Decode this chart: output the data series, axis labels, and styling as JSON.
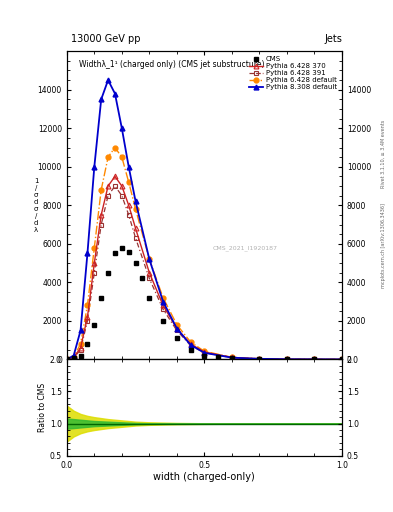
{
  "title_top": "13000 GeV pp",
  "title_right": "Jets",
  "main_title": "Widthλ_1¹ (charged only) (CMS jet substructure)",
  "xlabel": "width (charged-only)",
  "watermark": "CMS_2021_I1920187",
  "rivet_text": "Rivet 3.1.10, ≥ 3.4M events",
  "mcplots_text": "mcplots.cern.ch [arXiv:1306.3436]",
  "x_vals": [
    0.0,
    0.025,
    0.05,
    0.075,
    0.1,
    0.125,
    0.15,
    0.175,
    0.2,
    0.225,
    0.25,
    0.275,
    0.3,
    0.35,
    0.4,
    0.45,
    0.5,
    0.55,
    0.6,
    0.7,
    0.8,
    0.9,
    1.0
  ],
  "cms_y": [
    0,
    50,
    200,
    800,
    1800,
    3200,
    4500,
    5500,
    5800,
    5600,
    5000,
    4200,
    3200,
    2000,
    1100,
    500,
    200,
    100,
    50,
    20,
    8,
    3,
    0
  ],
  "p6_370_x": [
    0.0,
    0.025,
    0.05,
    0.075,
    0.1,
    0.125,
    0.15,
    0.175,
    0.2,
    0.225,
    0.25,
    0.3,
    0.35,
    0.4,
    0.45,
    0.5,
    0.6,
    0.7,
    0.8,
    0.9,
    1.0
  ],
  "p6_370_y": [
    0,
    100,
    600,
    2200,
    5000,
    7500,
    9000,
    9500,
    9000,
    8000,
    6800,
    4500,
    2800,
    1600,
    800,
    380,
    100,
    30,
    10,
    3,
    0
  ],
  "p6_391_x": [
    0.0,
    0.025,
    0.05,
    0.075,
    0.1,
    0.125,
    0.15,
    0.175,
    0.2,
    0.225,
    0.25,
    0.3,
    0.35,
    0.4,
    0.45,
    0.5,
    0.6,
    0.7,
    0.8,
    0.9,
    1.0
  ],
  "p6_391_y": [
    0,
    80,
    500,
    2000,
    4500,
    7000,
    8500,
    9000,
    8500,
    7500,
    6300,
    4200,
    2600,
    1500,
    720,
    350,
    90,
    28,
    8,
    2,
    0
  ],
  "p6_def_x": [
    0.0,
    0.025,
    0.05,
    0.075,
    0.1,
    0.125,
    0.15,
    0.175,
    0.2,
    0.225,
    0.25,
    0.3,
    0.35,
    0.4,
    0.45,
    0.5,
    0.6,
    0.7,
    0.8,
    0.9,
    1.0
  ],
  "p6_def_y": [
    0,
    130,
    800,
    2800,
    5800,
    8800,
    10500,
    11000,
    10500,
    9200,
    7800,
    5200,
    3200,
    1800,
    900,
    420,
    110,
    35,
    11,
    3,
    0
  ],
  "p8_def_x": [
    0.0,
    0.025,
    0.05,
    0.075,
    0.1,
    0.125,
    0.15,
    0.175,
    0.2,
    0.225,
    0.25,
    0.3,
    0.35,
    0.4,
    0.45,
    0.5,
    0.6,
    0.7,
    0.8,
    0.9,
    1.0
  ],
  "p8_def_y": [
    0,
    200,
    1500,
    5500,
    10000,
    13500,
    14500,
    13800,
    12000,
    10000,
    8200,
    5200,
    3000,
    1600,
    750,
    340,
    90,
    28,
    8,
    2,
    0
  ],
  "ratio_x": [
    0.0,
    0.025,
    0.05,
    0.075,
    0.1,
    0.15,
    0.2,
    0.25,
    0.3,
    0.4,
    0.5,
    0.6,
    0.7,
    0.8,
    0.9,
    1.0
  ],
  "ratio_green_lo": [
    0.92,
    0.93,
    0.94,
    0.95,
    0.96,
    0.97,
    0.98,
    0.99,
    0.995,
    0.998,
    0.998,
    0.999,
    0.999,
    1.0,
    1.0,
    1.0
  ],
  "ratio_green_hi": [
    1.08,
    1.07,
    1.06,
    1.05,
    1.04,
    1.03,
    1.02,
    1.01,
    1.005,
    1.002,
    1.002,
    1.001,
    1.001,
    1.0,
    1.0,
    1.0
  ],
  "ratio_yellow_lo": [
    0.72,
    0.8,
    0.85,
    0.88,
    0.9,
    0.93,
    0.95,
    0.97,
    0.98,
    0.99,
    0.995,
    0.998,
    0.999,
    1.0,
    1.0,
    1.0
  ],
  "ratio_yellow_hi": [
    1.28,
    1.2,
    1.15,
    1.12,
    1.1,
    1.07,
    1.05,
    1.03,
    1.02,
    1.01,
    1.005,
    1.002,
    1.001,
    1.0,
    1.0,
    1.0
  ],
  "ylim_main": [
    0,
    16000
  ],
  "ylim_ratio": [
    0.5,
    2.0
  ],
  "xlim": [
    0.0,
    1.0
  ],
  "color_cms": "#000000",
  "color_p6_370": "#cc2222",
  "color_p6_391": "#993333",
  "color_p6_def": "#ff8800",
  "color_p8_def": "#0000cc",
  "bg_color": "#ffffff",
  "ratio_green_color": "#33bb33",
  "ratio_yellow_color": "#dddd00",
  "yticks_main": [
    0,
    2000,
    4000,
    6000,
    8000,
    10000,
    12000,
    14000
  ],
  "yticks_ratio": [
    0.5,
    1.0,
    1.5,
    2.0
  ],
  "xticks": [
    0.0,
    0.5,
    1.0
  ]
}
